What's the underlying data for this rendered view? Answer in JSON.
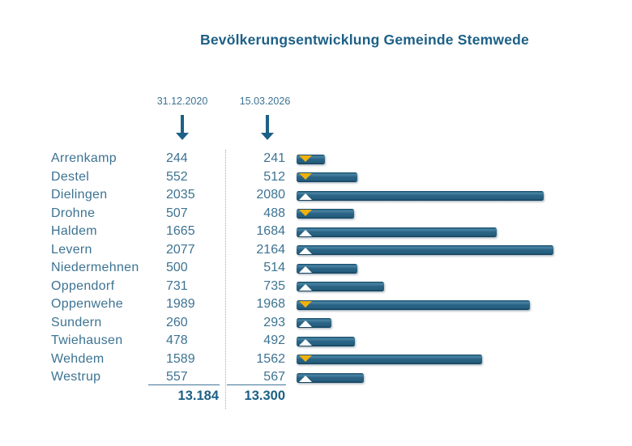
{
  "colors": {
    "accent": "#1d6086",
    "text": "#3d7392",
    "bar_main": "#2a6385",
    "marker_up": "#ffffff",
    "marker_down": "#f0b10c",
    "divider": "#93b3c6",
    "underline": "#44759a"
  },
  "chart_data": {
    "type": "bar",
    "title": "Bevölkerungsentwicklung Gemeinde Stemwede",
    "categories": [
      "Arrenkamp",
      "Destel",
      "Dielingen",
      "Drohne",
      "Haldem",
      "Levern",
      "Niedermehnen",
      "Oppendorf",
      "Oppenwehe",
      "Sundern",
      "Twiehausen",
      "Wehdem",
      "Westrup"
    ],
    "series": [
      {
        "name": "31.12.2020",
        "values": [
          244,
          552,
          2035,
          507,
          1665,
          2077,
          500,
          731,
          1989,
          260,
          478,
          1589,
          557
        ]
      },
      {
        "name": "15.03.2026",
        "values": [
          241,
          512,
          2080,
          488,
          1684,
          2164,
          514,
          735,
          1968,
          293,
          492,
          1562,
          567
        ]
      }
    ],
    "trends": [
      "down",
      "down",
      "up",
      "down",
      "up",
      "up",
      "up",
      "up",
      "down",
      "up",
      "up",
      "down",
      "up"
    ],
    "totals": {
      "t2020": "13.184",
      "t2026": "13.300"
    },
    "bars_show_series": "15.03.2026",
    "xlim": [
      0,
      2164
    ],
    "legend_notes": {
      "up": "white upward triangle = population increase",
      "down": "yellow downward triangle = population decrease"
    },
    "layout": {
      "orientation": "horizontal",
      "grid": false,
      "axes_visible": false
    }
  }
}
